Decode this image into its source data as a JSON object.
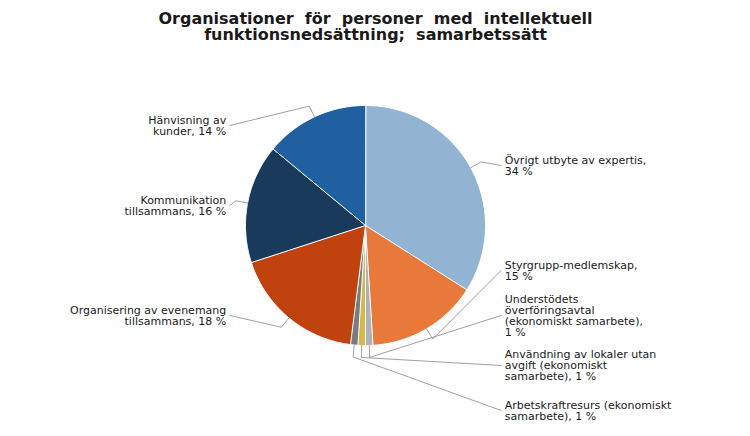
{
  "chart_data": {
    "type": "pie",
    "title": "Organisationer  för  personer  med  intellektuell\nfunktionsnedsättning;  samarbetssätt",
    "categories": [
      "Övrigt utbyte av expertis,\n34 %",
      "Styrgrupp-medlemskap,\n15 %",
      "Understödets\növerföringsavtal\n(ekonomiskt samarbete),\n1 %",
      "Användning av lokaler utan\navgift (ekonomiskt\nsamarbete), 1 %",
      "Arbetskraftresurs (ekonomiskt\nsamarbete), 1 %",
      "Organisering av evenemang\ntillsammans, 18 %",
      "Kommunikation\ntillsammans, 16 %",
      "Hänvisning av\nkunder, 14 %"
    ],
    "values": [
      34,
      15,
      1,
      1,
      1,
      18,
      16,
      14
    ],
    "colors": [
      "#92b4d2",
      "#e8793a",
      "#b0b0b8",
      "#d4b84a",
      "#7a7a80",
      "#c0420e",
      "#1a3a5c",
      "#2060a0"
    ]
  }
}
